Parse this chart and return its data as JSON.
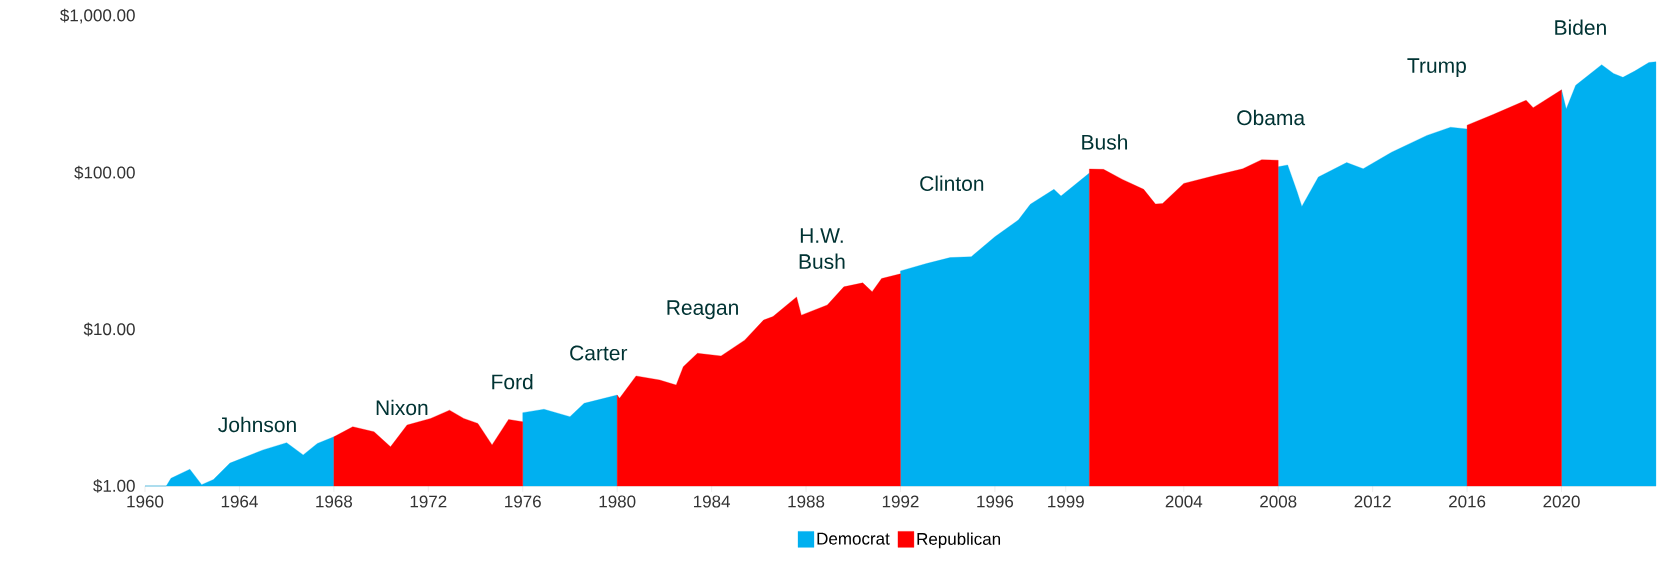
{
  "chart_data": {
    "type": "area",
    "log": "y",
    "legend": "bottom",
    "xlim": [
      1960,
      2024
    ],
    "xticks": [
      1960,
      1964,
      1968,
      1972,
      1976,
      1980,
      1984,
      1988,
      1992,
      1996,
      1999,
      2004,
      2008,
      2012,
      2016,
      2020
    ],
    "ylim": [
      1,
      1000
    ],
    "yticks": [
      {
        "value": 1,
        "label": "$1.00"
      },
      {
        "value": 10,
        "label": "$10.00"
      },
      {
        "value": 100,
        "label": "$100.00"
      },
      {
        "value": 1000,
        "label": "$1,000.00"
      }
    ],
    "series": [
      {
        "name": "Democrat",
        "color": "#00b0f0",
        "x": [
          1960.0,
          1960.9,
          1961.1,
          1961.9,
          1962.4,
          1962.9,
          1963.6,
          1965.0,
          1966.0,
          1966.7,
          1967.3,
          1968.0,
          1972.0,
          1976.0,
          1976.9,
          1978.0,
          1978.6,
          1980.0,
          1986.0,
          1992.0,
          1993.1,
          1994.1,
          1995.0,
          1996.0,
          1997.0,
          1997.5,
          1998.5,
          1998.8,
          2000.0,
          2004.0,
          2008.0,
          2008.4,
          2008.8,
          2009.0,
          2009.7,
          2010.9,
          2011.6,
          2012.8,
          2014.3,
          2015.3,
          2016.0,
          2018.0,
          2020.0,
          2020.2,
          2020.6,
          2021.7,
          2022.2,
          2022.6,
          2023.1,
          2023.7,
          2024.0
        ],
        "values": [
          1.0,
          1.0,
          1.12,
          1.28,
          1.02,
          1.1,
          1.4,
          1.7,
          1.89,
          1.58,
          1.87,
          2.06,
          null,
          2.94,
          3.09,
          2.77,
          3.37,
          3.81,
          null,
          23.6,
          26.3,
          28.7,
          29.1,
          39.0,
          50.0,
          62.9,
          78.3,
          71.0,
          99.4,
          null,
          109,
          112,
          75.6,
          60.9,
          93.8,
          116,
          106,
          135,
          173,
          195,
          190,
          null,
          338,
          255,
          361,
          489,
          430,
          406,
          445,
          505,
          510
        ]
      },
      {
        "name": "Republican",
        "color": "#ff0000",
        "x": [
          1968.0,
          1968.8,
          1969.7,
          1970.4,
          1971.1,
          1972.1,
          1972.9,
          1973.5,
          1974.1,
          1974.7,
          1975.4,
          1976.0,
          1978.0,
          1980.0,
          1980.1,
          1980.8,
          1981.8,
          1982.5,
          1982.8,
          1983.4,
          1984.4,
          1985.4,
          1986.2,
          1986.6,
          1987.6,
          1987.8,
          1988.9,
          1989.6,
          1990.4,
          1990.8,
          1991.2,
          1992.0,
          1996.0,
          2000.0,
          2000.6,
          2001.4,
          2002.3,
          2002.8,
          2003.1,
          2004.0,
          2005.4,
          2006.5,
          2007.3,
          2008.0,
          2012.0,
          2016.0,
          2017.1,
          2018.5,
          2018.8,
          2020.0
        ],
        "values": [
          2.06,
          2.39,
          2.22,
          1.78,
          2.45,
          2.7,
          3.05,
          2.7,
          2.51,
          1.83,
          2.66,
          2.57,
          null,
          3.81,
          3.63,
          5.04,
          4.75,
          4.41,
          5.78,
          7.03,
          6.76,
          8.53,
          11.45,
          12.07,
          16.1,
          12.32,
          14.3,
          18.67,
          19.8,
          17.4,
          21.1,
          22.6,
          null,
          105.6,
          105,
          90.6,
          78.3,
          63,
          63.5,
          85.4,
          96.5,
          106,
          121,
          120,
          null,
          201,
          235,
          290,
          260,
          338
        ]
      }
    ],
    "annotations": [
      "Johnson",
      "Nixon",
      "Ford",
      "Carter",
      "Reagan",
      "H.W. Bush",
      "Clinton",
      "Bush",
      "Obama",
      "Trump",
      "Biden"
    ]
  }
}
